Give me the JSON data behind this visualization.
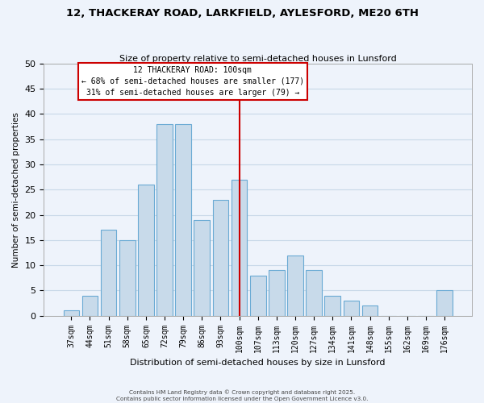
{
  "title": "12, THACKERAY ROAD, LARKFIELD, AYLESFORD, ME20 6TH",
  "subtitle": "Size of property relative to semi-detached houses in Lunsford",
  "xlabel": "Distribution of semi-detached houses by size in Lunsford",
  "ylabel": "Number of semi-detached properties",
  "categories": [
    "37sqm",
    "44sqm",
    "51sqm",
    "58sqm",
    "65sqm",
    "72sqm",
    "79sqm",
    "86sqm",
    "93sqm",
    "100sqm",
    "107sqm",
    "113sqm",
    "120sqm",
    "127sqm",
    "134sqm",
    "141sqm",
    "148sqm",
    "155sqm",
    "162sqm",
    "169sqm",
    "176sqm"
  ],
  "values": [
    1,
    4,
    17,
    15,
    26,
    38,
    38,
    19,
    23,
    27,
    8,
    9,
    12,
    9,
    4,
    3,
    2,
    0,
    0,
    0,
    5
  ],
  "bar_color": "#c8daea",
  "bar_edge_color": "#6aaad4",
  "highlight_index": 9,
  "highlight_line_color": "#cc0000",
  "highlight_box_line1": "12 THACKERAY ROAD: 100sqm",
  "highlight_box_line2": "← 68% of semi-detached houses are smaller (177)",
  "highlight_box_line3": "31% of semi-detached houses are larger (79) →",
  "ylim": [
    0,
    50
  ],
  "yticks": [
    0,
    5,
    10,
    15,
    20,
    25,
    30,
    35,
    40,
    45,
    50
  ],
  "grid_color": "#c8d8e8",
  "background_color": "#eef3fb",
  "footer_line1": "Contains HM Land Registry data © Crown copyright and database right 2025.",
  "footer_line2": "Contains public sector information licensed under the Open Government Licence v3.0."
}
